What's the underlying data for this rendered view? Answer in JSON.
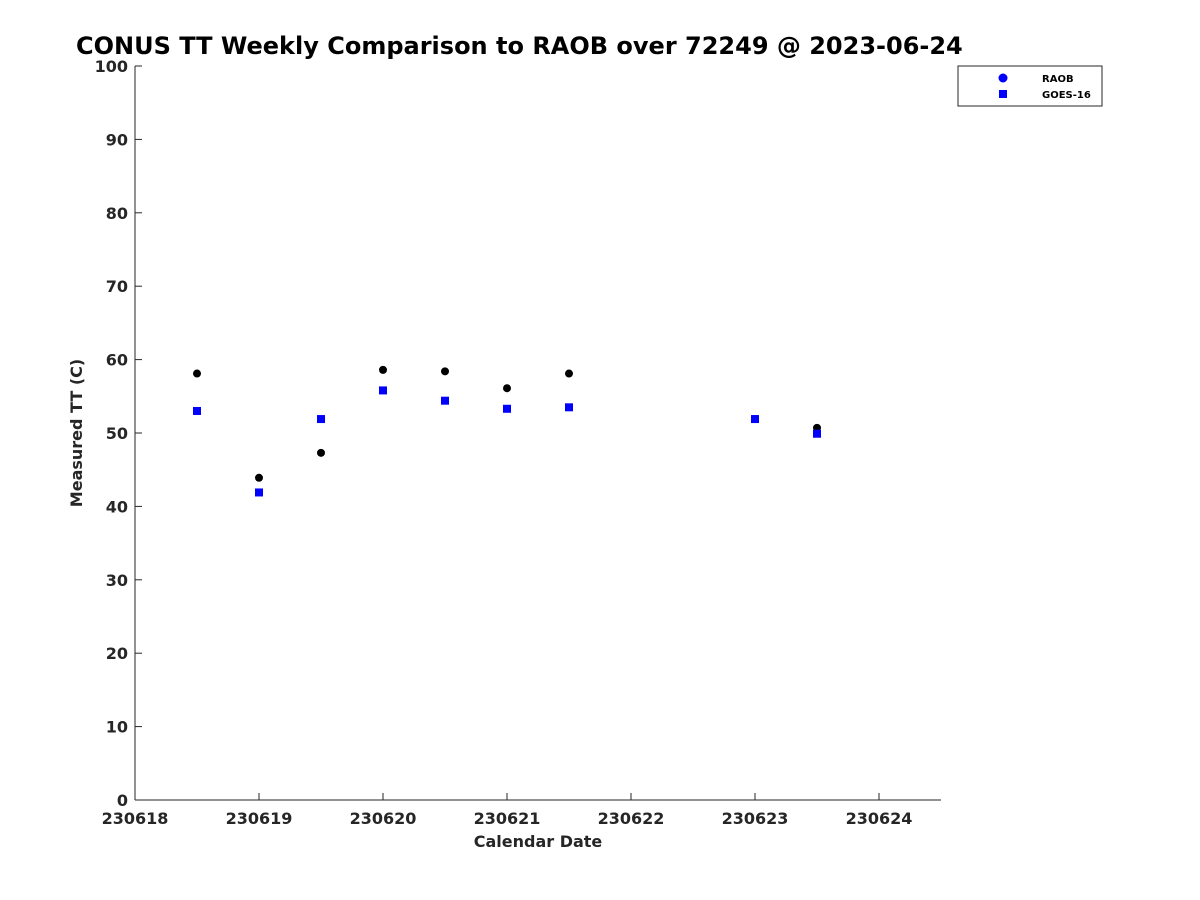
{
  "chart_data": {
    "type": "scatter",
    "title": "CONUS TT Weekly Comparison to RAOB over 72249 @ 2023-06-24",
    "xlabel": "Calendar Date",
    "ylabel": "Measured TT (C)",
    "xlim": [
      230618,
      230624.5
    ],
    "ylim": [
      0,
      100
    ],
    "x_ticks": [
      230618,
      230619,
      230620,
      230621,
      230622,
      230623,
      230624
    ],
    "x_tick_labels": [
      "230618",
      "230619",
      "230620",
      "230621",
      "230622",
      "230623",
      "230624"
    ],
    "y_ticks": [
      0,
      10,
      20,
      30,
      40,
      50,
      60,
      70,
      80,
      90,
      100
    ],
    "y_tick_labels": [
      "0",
      "10",
      "20",
      "30",
      "40",
      "50",
      "60",
      "70",
      "80",
      "90",
      "100"
    ],
    "grid": false,
    "legend_position": "top-right",
    "series": [
      {
        "name": "RAOB",
        "marker": "circle",
        "legend_color": "#0000ff",
        "color": "#000000",
        "points": [
          {
            "x": 230618.5,
            "y": 58.1
          },
          {
            "x": 230619.0,
            "y": 43.9
          },
          {
            "x": 230619.5,
            "y": 47.3
          },
          {
            "x": 230620.0,
            "y": 58.6
          },
          {
            "x": 230620.5,
            "y": 58.4
          },
          {
            "x": 230621.0,
            "y": 56.1
          },
          {
            "x": 230621.5,
            "y": 58.1
          },
          {
            "x": 230623.0,
            "y": 51.9
          },
          {
            "x": 230623.5,
            "y": 50.7
          }
        ]
      },
      {
        "name": "GOES-16",
        "marker": "square",
        "legend_color": "#0000ff",
        "color": "#0000ff",
        "points": [
          {
            "x": 230618.5,
            "y": 53.0
          },
          {
            "x": 230619.0,
            "y": 41.9
          },
          {
            "x": 230619.5,
            "y": 51.9
          },
          {
            "x": 230620.0,
            "y": 55.8
          },
          {
            "x": 230620.5,
            "y": 54.4
          },
          {
            "x": 230621.0,
            "y": 53.3
          },
          {
            "x": 230621.5,
            "y": 53.5
          },
          {
            "x": 230623.0,
            "y": 51.9
          },
          {
            "x": 230623.5,
            "y": 49.9
          }
        ]
      }
    ]
  }
}
